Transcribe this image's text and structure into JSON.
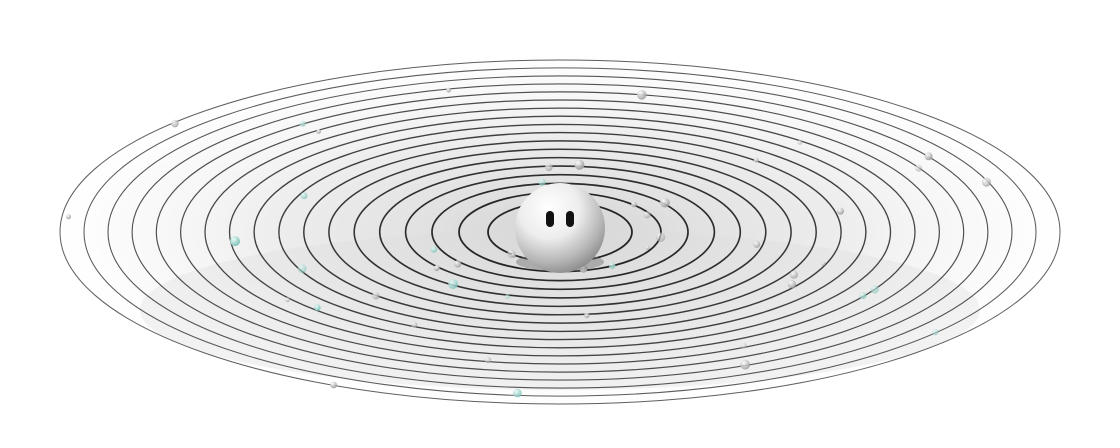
{
  "scene": {
    "ring_count": 18,
    "planet_count": 50,
    "colors": {
      "background": "#ffffff",
      "ring_stroke": "#1a1a1a",
      "disc_glow": "#d8d8d8",
      "planet_gray": "#c9c9c9",
      "planet_teal": "#9fd6cf",
      "sun_light": "#ffffff",
      "sun_dark": "#9a9a9a",
      "eyes": "#111111"
    },
    "icons": [
      "sun-face-icon",
      "orbit-ring-icon",
      "planet-dot-icon"
    ]
  }
}
